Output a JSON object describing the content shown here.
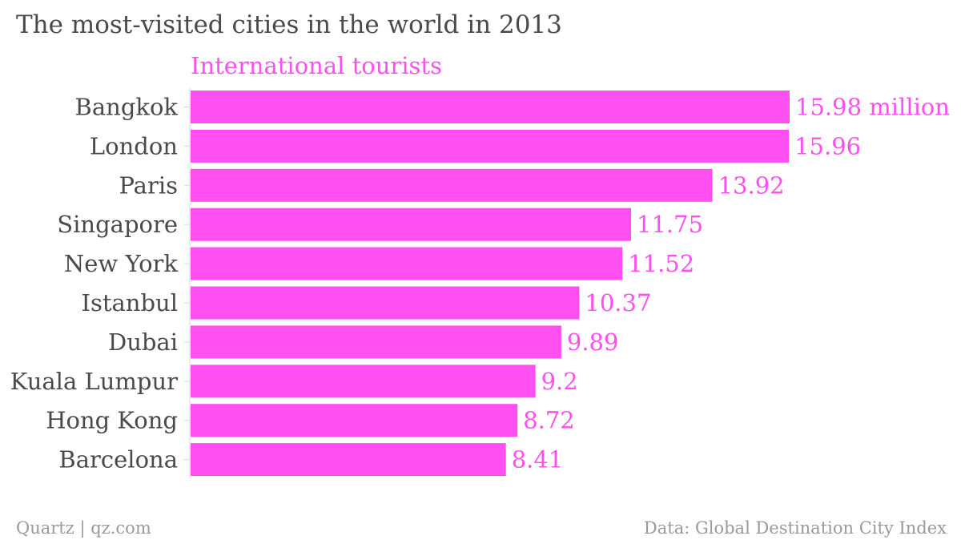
{
  "chart_data": {
    "type": "bar",
    "orientation": "horizontal",
    "title": "The most-visited cities in the world in 2013",
    "series": [
      {
        "name": "International tourists",
        "color": "#ff4ff0",
        "values": [
          15.98,
          15.96,
          13.92,
          11.75,
          11.52,
          10.37,
          9.89,
          9.2,
          8.72,
          8.41
        ],
        "value_labels": [
          "15.98 million",
          "15.96",
          "13.92",
          "11.75",
          "11.52",
          "10.37",
          "9.89",
          "9.2",
          "8.72",
          "8.41"
        ]
      }
    ],
    "categories": [
      "Bangkok",
      "London",
      "Paris",
      "Singapore",
      "New York",
      "Istanbul",
      "Dubai",
      "Kuala Lumpur",
      "Hong Kong",
      "Barcelona"
    ],
    "xlim": [
      0,
      15.98
    ],
    "grid": false,
    "legend": "top-left"
  },
  "footer": {
    "left": "Quartz | qz.com",
    "right": "Data: Global Destination City Index"
  }
}
